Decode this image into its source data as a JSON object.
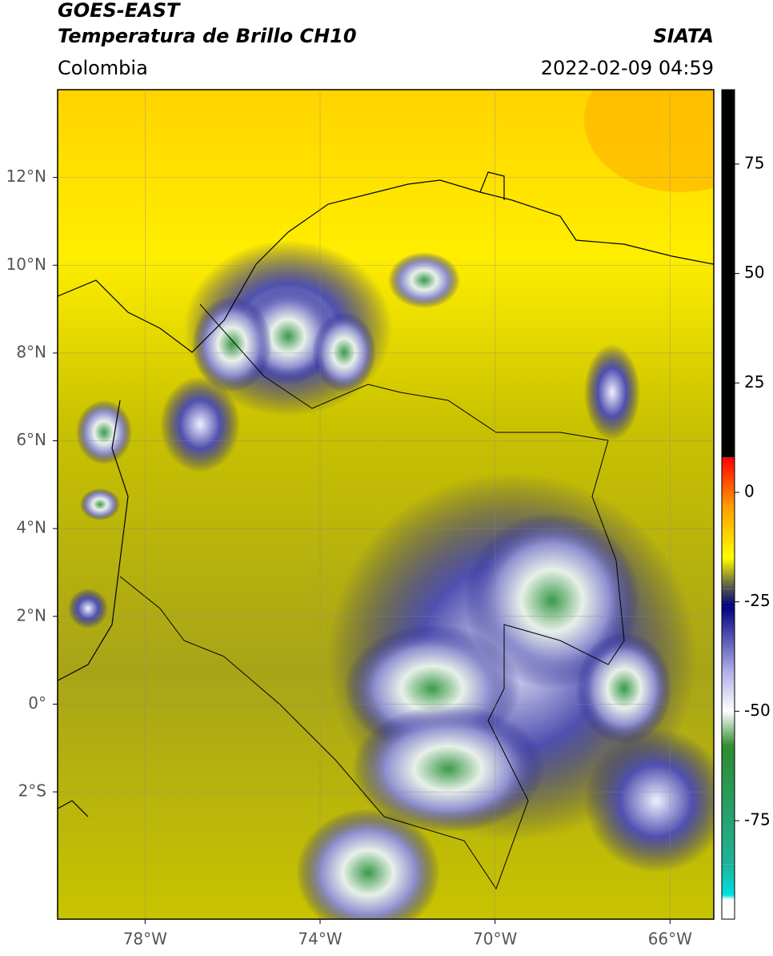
{
  "header": {
    "title": "GOES-EAST",
    "subtitle": "Temperatura de Brillo CH10",
    "region": "Colombia",
    "source": "SIATA",
    "datetime": "2022-02-09 04:59"
  },
  "map": {
    "lon_range": [
      -80,
      -65
    ],
    "lat_range": [
      -4.9,
      14
    ],
    "lon_ticks": [
      {
        "value": -78,
        "label": "78°W"
      },
      {
        "value": -74,
        "label": "74°W"
      },
      {
        "value": -70,
        "label": "70°W"
      },
      {
        "value": -66,
        "label": "66°W"
      }
    ],
    "lat_ticks": [
      {
        "value": 12,
        "label": "12°N"
      },
      {
        "value": 10,
        "label": "10°N"
      },
      {
        "value": 8,
        "label": "8°N"
      },
      {
        "value": 6,
        "label": "6°N"
      },
      {
        "value": 4,
        "label": "4°N"
      },
      {
        "value": 2,
        "label": "2°N"
      },
      {
        "value": 0,
        "label": "0°"
      },
      {
        "value": -2,
        "label": "2°S"
      }
    ]
  },
  "colorbar": {
    "range": [
      -97.5,
      92
    ],
    "ticks": [
      75,
      50,
      25,
      0,
      -25,
      -50,
      -75
    ],
    "colormap": [
      {
        "value": -97.5,
        "color": "#ffffff"
      },
      {
        "value": -93,
        "color": "#ffffff"
      },
      {
        "value": -92,
        "color": "#00e0e0"
      },
      {
        "value": -85,
        "color": "#1fb39a"
      },
      {
        "value": -58,
        "color": "#2e8b2e"
      },
      {
        "value": -50,
        "color": "#ffffff"
      },
      {
        "value": -41,
        "color": "#b0b0e8"
      },
      {
        "value": -26,
        "color": "#000080"
      },
      {
        "value": -22,
        "color": "#505050"
      },
      {
        "value": -15,
        "color": "#ffff00"
      },
      {
        "value": -3,
        "color": "#ff9900"
      },
      {
        "value": 8,
        "color": "#ff0000"
      },
      {
        "value": 8.01,
        "color": "#000000"
      },
      {
        "value": 92,
        "color": "#000000"
      }
    ]
  }
}
